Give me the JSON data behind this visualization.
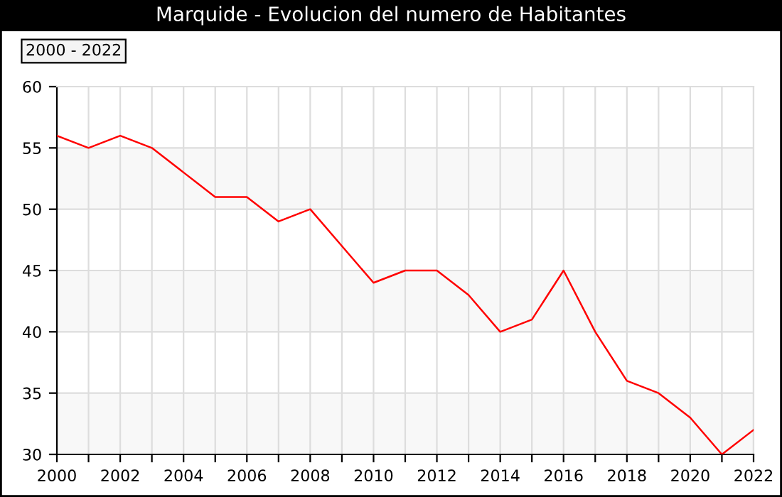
{
  "chart_data": {
    "type": "line",
    "title": "Marquide - Evolucion del numero de Habitantes",
    "annotations": [
      "2000 - 2022"
    ],
    "x": [
      2000,
      2001,
      2002,
      2003,
      2004,
      2005,
      2006,
      2007,
      2008,
      2009,
      2010,
      2011,
      2012,
      2013,
      2014,
      2015,
      2016,
      2017,
      2018,
      2019,
      2020,
      2021,
      2022
    ],
    "series": [
      {
        "color": "#ff0000",
        "values": [
          56,
          55,
          56,
          55,
          53,
          51,
          51,
          49,
          50,
          47,
          44,
          45,
          45,
          43,
          40,
          41,
          45,
          40,
          36,
          35,
          33,
          30,
          32
        ]
      }
    ],
    "xlim": [
      2000,
      2022
    ],
    "xticks": [
      2000,
      {
        "value": 2001,
        "label": null
      },
      2002,
      {
        "value": 2003,
        "label": null
      },
      2004,
      {
        "value": 2005,
        "label": null
      },
      2006,
      {
        "value": 2007,
        "label": null
      },
      2008,
      {
        "value": 2009,
        "label": null
      },
      2010,
      {
        "value": 2011,
        "label": null
      },
      2012,
      {
        "value": 2013,
        "label": null
      },
      2014,
      {
        "value": 2015,
        "label": null
      },
      2016,
      {
        "value": 2017,
        "label": null
      },
      2018,
      {
        "value": 2019,
        "label": null
      },
      2020,
      {
        "value": 2021,
        "label": null
      },
      2022
    ],
    "ylim": [
      30,
      60
    ],
    "yticks": [
      30,
      35,
      40,
      45,
      50,
      55,
      60
    ],
    "bands": [
      {
        "axis": "y",
        "from": 30,
        "to": 35,
        "color": "#f8f8f8"
      },
      {
        "axis": "y",
        "from": 40,
        "to": 45,
        "color": "#f8f8f8"
      },
      {
        "axis": "y",
        "from": 50,
        "to": 55,
        "color": "#f8f8f8"
      }
    ],
    "grid": true,
    "legend": false,
    "marker": "none",
    "line_style": "solid"
  }
}
